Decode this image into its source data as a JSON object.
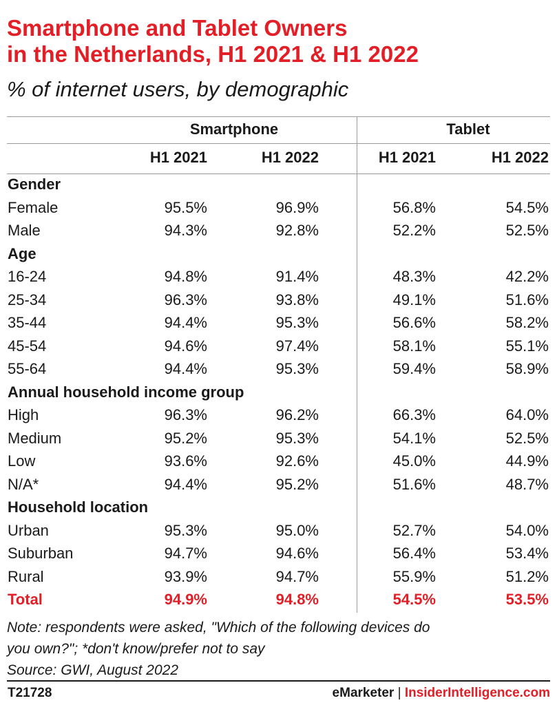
{
  "title_line1": "Smartphone and Tablet Owners",
  "title_line2": "in the Netherlands, H1 2021 & H1 2022",
  "subtitle": "% of internet users, by demographic",
  "chart_data": {
    "type": "table",
    "groups": [
      "Smartphone",
      "Tablet"
    ],
    "columns": [
      "H1 2021",
      "H1 2022",
      "H1 2021",
      "H1 2022"
    ],
    "rows": [
      {
        "section": "Gender"
      },
      {
        "label": "Female",
        "values": [
          "95.5%",
          "96.9%",
          "56.8%",
          "54.5%"
        ]
      },
      {
        "label": "Male",
        "values": [
          "94.3%",
          "92.8%",
          "52.2%",
          "52.5%"
        ]
      },
      {
        "section": "Age"
      },
      {
        "label": "16-24",
        "values": [
          "94.8%",
          "91.4%",
          "48.3%",
          "42.2%"
        ]
      },
      {
        "label": "25-34",
        "values": [
          "96.3%",
          "93.8%",
          "49.1%",
          "51.6%"
        ]
      },
      {
        "label": "35-44",
        "values": [
          "94.4%",
          "95.3%",
          "56.6%",
          "58.2%"
        ]
      },
      {
        "label": "45-54",
        "values": [
          "94.6%",
          "97.4%",
          "58.1%",
          "55.1%"
        ]
      },
      {
        "label": "55-64",
        "values": [
          "94.4%",
          "95.3%",
          "59.4%",
          "58.9%"
        ]
      },
      {
        "section": "Annual household income group"
      },
      {
        "label": "High",
        "values": [
          "96.3%",
          "96.2%",
          "66.3%",
          "64.0%"
        ]
      },
      {
        "label": "Medium",
        "values": [
          "95.2%",
          "95.3%",
          "54.1%",
          "52.5%"
        ]
      },
      {
        "label": "Low",
        "values": [
          "93.6%",
          "92.6%",
          "45.0%",
          "44.9%"
        ]
      },
      {
        "label": "N/A*",
        "values": [
          "94.4%",
          "95.2%",
          "51.6%",
          "48.7%"
        ]
      },
      {
        "section": "Household location"
      },
      {
        "label": "Urban",
        "values": [
          "95.3%",
          "95.0%",
          "52.7%",
          "54.0%"
        ]
      },
      {
        "label": "Suburban",
        "values": [
          "94.7%",
          "94.6%",
          "56.4%",
          "53.4%"
        ]
      },
      {
        "label": "Rural",
        "values": [
          "93.9%",
          "94.7%",
          "55.9%",
          "51.2%"
        ]
      },
      {
        "label": "Total",
        "values": [
          "94.9%",
          "94.8%",
          "54.5%",
          "53.5%"
        ],
        "total": true
      }
    ]
  },
  "note_line1": "Note: respondents were asked, \"Which of the following devices do",
  "note_line2": "you own?\"; *don't know/prefer not to say",
  "source": "Source: GWI, August 2022",
  "chart_id": "T21728",
  "brand_emarketer": "eMarketer",
  "brand_separator": "|",
  "brand_insider": "InsiderIntelligence.com",
  "colors": {
    "accent": "#e21f26",
    "text": "#1a1a1a",
    "rule": "#9a9a9a"
  }
}
